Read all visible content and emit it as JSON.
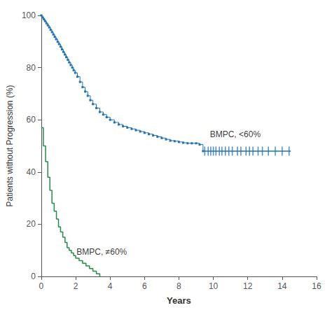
{
  "chart_data": {
    "type": "line",
    "xlabel": "Years",
    "ylabel": "Patients without Progression (%)",
    "xlim": [
      0,
      16
    ],
    "ylim": [
      0,
      100
    ],
    "xticks": [
      0,
      2,
      4,
      6,
      8,
      10,
      12,
      14,
      16
    ],
    "yticks": [
      0,
      20,
      40,
      60,
      80,
      100
    ],
    "grid": false,
    "series": [
      {
        "type": "line",
        "line_style": "step-post",
        "marker": "square",
        "color": "#2171b5",
        "x": [
          0,
          0.08,
          0.15,
          0.22,
          0.3,
          0.38,
          0.46,
          0.54,
          0.62,
          0.7,
          0.78,
          0.86,
          0.95,
          1.03,
          1.12,
          1.2,
          1.28,
          1.37,
          1.45,
          1.54,
          1.62,
          1.71,
          1.8,
          1.88,
          1.97,
          2.1,
          2.25,
          2.4,
          2.55,
          2.7,
          2.85,
          3.0,
          3.2,
          3.4,
          3.6,
          3.8,
          4.0,
          4.25,
          4.5,
          4.75,
          5.0,
          5.25,
          5.5,
          5.75,
          6.0,
          6.25,
          6.5,
          6.75,
          7.0,
          7.25,
          7.5,
          7.75,
          8.0,
          8.25,
          8.5,
          8.75,
          9.0,
          9.2,
          9.4
        ],
        "values": [
          100,
          99.2,
          98.5,
          97.8,
          97.0,
          96.2,
          95.4,
          94.5,
          93.6,
          92.7,
          91.8,
          90.9,
          89.9,
          89.0,
          88.0,
          87.0,
          86.0,
          85.0,
          84.0,
          83.0,
          82.0,
          81.0,
          80.0,
          79.0,
          78.0,
          76.5,
          74.5,
          72.5,
          70.8,
          69.2,
          67.5,
          66.0,
          64.5,
          63.0,
          62.0,
          61.0,
          60.0,
          59.0,
          58.2,
          57.5,
          57.0,
          56.5,
          56.0,
          55.5,
          55.0,
          54.5,
          54.0,
          53.5,
          53.0,
          52.5,
          52.0,
          51.8,
          51.5,
          51.2,
          51.0,
          51.0,
          51.0,
          50.5,
          48.0
        ]
      },
      {
        "type": "line",
        "line_style": "solid",
        "color": "#2171b5",
        "x": [
          9.4,
          14.5
        ],
        "values": [
          48.0,
          48.0
        ]
      },
      {
        "type": "line",
        "line_style": "step-post",
        "color": "#238b45",
        "x": [
          0,
          0.12,
          0.25,
          0.38,
          0.5,
          0.62,
          0.75,
          0.88,
          1.0,
          1.12,
          1.25,
          1.38,
          1.5,
          1.62,
          1.75,
          1.88,
          2.0,
          2.2,
          2.4,
          2.6,
          2.8,
          3.0,
          3.2,
          3.4
        ],
        "values": [
          57,
          50,
          44,
          38,
          33,
          28,
          25,
          22,
          19,
          17,
          15,
          13,
          11,
          10,
          9,
          8,
          7,
          6,
          5,
          4,
          3,
          2,
          1,
          0
        ]
      },
      {
        "type": "scatter",
        "marker": "|",
        "color": "#2171b5",
        "x": [
          9.5,
          9.7,
          9.85,
          10.0,
          10.15,
          10.35,
          10.5,
          10.7,
          10.9,
          11.1,
          11.4,
          11.6,
          11.9,
          12.1,
          12.3,
          12.6,
          12.85,
          13.2,
          13.6,
          14.0,
          14.4
        ],
        "values": [
          48,
          48,
          48,
          48,
          48,
          48,
          48,
          48,
          48,
          48,
          48,
          48,
          48,
          48,
          48,
          48,
          48,
          48,
          48,
          48,
          48
        ]
      }
    ],
    "annotations": [
      {
        "text": "BMPC, <60%",
        "x": 9.8,
        "y": 54.5
      },
      {
        "text": "BMPC, ≠60%",
        "x": 2.05,
        "y": 9.5
      }
    ]
  }
}
